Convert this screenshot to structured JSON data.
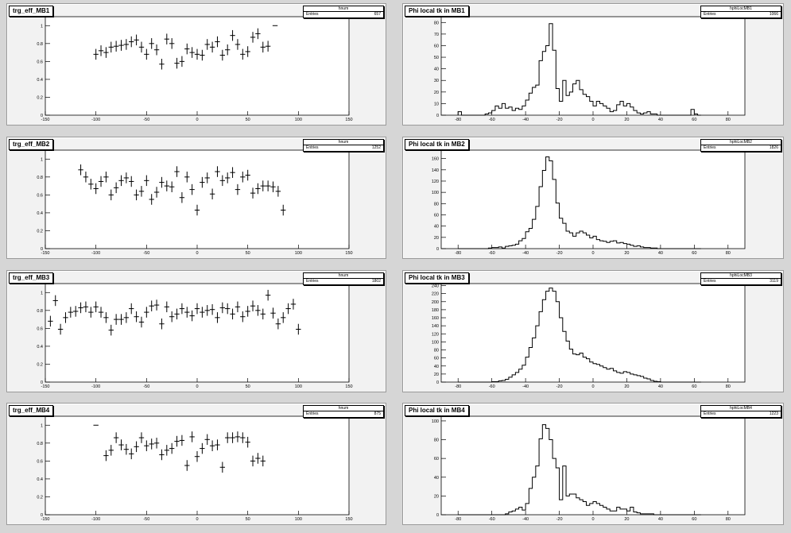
{
  "efficiency_pads": [
    {
      "title": "trg_eff_MB1",
      "stats_name": "hnum",
      "stats_entries_label": "Entries",
      "stats_entries": "657"
    },
    {
      "title": "trg_eff_MB2",
      "stats_name": "hnum",
      "stats_entries_label": "Entries",
      "stats_entries": "1252"
    },
    {
      "title": "trg_eff_MB3",
      "stats_name": "hnum",
      "stats_entries_label": "Entries",
      "stats_entries": "1802"
    },
    {
      "title": "trg_eff_MB4",
      "stats_name": "hnum",
      "stats_entries_label": "Entries",
      "stats_entries": "875"
    }
  ],
  "phi_pads": [
    {
      "title": "Phi local tk in MB1",
      "stats_name": "hphiLocMB1",
      "stats_entries_label": "Entries",
      "stats_entries": "1066"
    },
    {
      "title": "Phi local tk in MB2",
      "stats_name": "hphiLocMB2",
      "stats_entries_label": "Entries",
      "stats_entries": "1826"
    },
    {
      "title": "Phi local tk in MB3",
      "stats_name": "hphiLocMB3",
      "stats_entries_label": "Entries",
      "stats_entries": "3119"
    },
    {
      "title": "Phi local tk in MB4",
      "stats_name": "hphiLocMB4",
      "stats_entries_label": "Entries",
      "stats_entries": "1223"
    }
  ],
  "chart_data": [
    {
      "type": "scatter",
      "title": "trg_eff_MB1",
      "xlim": [
        -150,
        150
      ],
      "ylim": [
        0,
        1.1
      ],
      "xticks": [
        -150,
        -100,
        -50,
        0,
        50,
        100,
        150
      ],
      "yticks": [
        0,
        0.2,
        0.4,
        0.6,
        0.8,
        1
      ],
      "points": [
        [
          -100,
          0.68
        ],
        [
          -95,
          0.72
        ],
        [
          -90,
          0.7
        ],
        [
          -85,
          0.76
        ],
        [
          -80,
          0.77
        ],
        [
          -75,
          0.78
        ],
        [
          -70,
          0.79
        ],
        [
          -65,
          0.82
        ],
        [
          -60,
          0.84
        ],
        [
          -55,
          0.76
        ],
        [
          -50,
          0.68
        ],
        [
          -45,
          0.8
        ],
        [
          -40,
          0.73
        ],
        [
          -35,
          0.57
        ],
        [
          -30,
          0.85
        ],
        [
          -25,
          0.8
        ],
        [
          -20,
          0.58
        ],
        [
          -15,
          0.6
        ],
        [
          -10,
          0.74
        ],
        [
          -5,
          0.7
        ],
        [
          0,
          0.68
        ],
        [
          5,
          0.67
        ],
        [
          10,
          0.79
        ],
        [
          15,
          0.76
        ],
        [
          20,
          0.82
        ],
        [
          25,
          0.67
        ],
        [
          30,
          0.73
        ],
        [
          35,
          0.89
        ],
        [
          40,
          0.79
        ],
        [
          45,
          0.68
        ],
        [
          50,
          0.71
        ],
        [
          55,
          0.87
        ],
        [
          60,
          0.91
        ],
        [
          65,
          0.76
        ],
        [
          70,
          0.77
        ],
        [
          77,
          1.0
        ]
      ]
    },
    {
      "type": "scatter",
      "title": "trg_eff_MB2",
      "xlim": [
        -150,
        150
      ],
      "ylim": [
        0,
        1.1
      ],
      "xticks": [
        -150,
        -100,
        -50,
        0,
        50,
        100,
        150
      ],
      "yticks": [
        0,
        0.2,
        0.4,
        0.6,
        0.8,
        1
      ],
      "points": [
        [
          -115,
          0.88
        ],
        [
          -110,
          0.8
        ],
        [
          -105,
          0.72
        ],
        [
          -100,
          0.67
        ],
        [
          -95,
          0.75
        ],
        [
          -90,
          0.8
        ],
        [
          -85,
          0.6
        ],
        [
          -80,
          0.68
        ],
        [
          -75,
          0.76
        ],
        [
          -70,
          0.79
        ],
        [
          -65,
          0.75
        ],
        [
          -60,
          0.6
        ],
        [
          -55,
          0.64
        ],
        [
          -50,
          0.76
        ],
        [
          -45,
          0.55
        ],
        [
          -40,
          0.63
        ],
        [
          -35,
          0.74
        ],
        [
          -30,
          0.7
        ],
        [
          -25,
          0.69
        ],
        [
          -20,
          0.86
        ],
        [
          -15,
          0.57
        ],
        [
          -10,
          0.8
        ],
        [
          -5,
          0.66
        ],
        [
          0,
          0.43
        ],
        [
          5,
          0.74
        ],
        [
          10,
          0.79
        ],
        [
          15,
          0.61
        ],
        [
          20,
          0.86
        ],
        [
          25,
          0.76
        ],
        [
          30,
          0.79
        ],
        [
          35,
          0.85
        ],
        [
          40,
          0.66
        ],
        [
          45,
          0.8
        ],
        [
          50,
          0.82
        ],
        [
          55,
          0.62
        ],
        [
          60,
          0.67
        ],
        [
          65,
          0.7
        ],
        [
          70,
          0.7
        ],
        [
          75,
          0.69
        ],
        [
          80,
          0.64
        ],
        [
          85,
          0.43
        ]
      ]
    },
    {
      "type": "scatter",
      "title": "trg_eff_MB3",
      "xlim": [
        -150,
        150
      ],
      "ylim": [
        0,
        1.1
      ],
      "xticks": [
        -150,
        -100,
        -50,
        0,
        50,
        100,
        150
      ],
      "yticks": [
        0,
        0.2,
        0.4,
        0.6,
        0.8,
        1
      ],
      "points": [
        [
          -145,
          0.68
        ],
        [
          -140,
          0.91
        ],
        [
          -135,
          0.59
        ],
        [
          -130,
          0.72
        ],
        [
          -125,
          0.78
        ],
        [
          -120,
          0.79
        ],
        [
          -115,
          0.83
        ],
        [
          -110,
          0.84
        ],
        [
          -105,
          0.78
        ],
        [
          -100,
          0.84
        ],
        [
          -95,
          0.78
        ],
        [
          -90,
          0.72
        ],
        [
          -85,
          0.58
        ],
        [
          -80,
          0.7
        ],
        [
          -75,
          0.7
        ],
        [
          -70,
          0.72
        ],
        [
          -65,
          0.82
        ],
        [
          -60,
          0.73
        ],
        [
          -55,
          0.67
        ],
        [
          -50,
          0.78
        ],
        [
          -45,
          0.85
        ],
        [
          -40,
          0.86
        ],
        [
          -35,
          0.65
        ],
        [
          -30,
          0.84
        ],
        [
          -25,
          0.73
        ],
        [
          -20,
          0.76
        ],
        [
          -15,
          0.82
        ],
        [
          -10,
          0.78
        ],
        [
          -5,
          0.74
        ],
        [
          0,
          0.82
        ],
        [
          5,
          0.78
        ],
        [
          10,
          0.8
        ],
        [
          15,
          0.81
        ],
        [
          20,
          0.72
        ],
        [
          25,
          0.83
        ],
        [
          30,
          0.82
        ],
        [
          35,
          0.76
        ],
        [
          40,
          0.84
        ],
        [
          45,
          0.73
        ],
        [
          50,
          0.79
        ],
        [
          55,
          0.85
        ],
        [
          60,
          0.8
        ],
        [
          65,
          0.76
        ],
        [
          70,
          0.97
        ],
        [
          75,
          0.77
        ],
        [
          80,
          0.65
        ],
        [
          85,
          0.72
        ],
        [
          90,
          0.82
        ],
        [
          95,
          0.87
        ],
        [
          100,
          0.59
        ]
      ]
    },
    {
      "type": "scatter",
      "title": "trg_eff_MB4",
      "xlim": [
        -150,
        150
      ],
      "ylim": [
        0,
        1.1
      ],
      "xticks": [
        -150,
        -100,
        -50,
        0,
        50,
        100,
        150
      ],
      "yticks": [
        0,
        0.2,
        0.4,
        0.6,
        0.8,
        1
      ],
      "points": [
        [
          -100,
          1.0
        ],
        [
          -90,
          0.66
        ],
        [
          -85,
          0.72
        ],
        [
          -80,
          0.86
        ],
        [
          -75,
          0.78
        ],
        [
          -70,
          0.73
        ],
        [
          -65,
          0.68
        ],
        [
          -60,
          0.76
        ],
        [
          -55,
          0.86
        ],
        [
          -50,
          0.77
        ],
        [
          -45,
          0.79
        ],
        [
          -40,
          0.8
        ],
        [
          -35,
          0.67
        ],
        [
          -30,
          0.72
        ],
        [
          -25,
          0.74
        ],
        [
          -20,
          0.82
        ],
        [
          -15,
          0.83
        ],
        [
          -10,
          0.55
        ],
        [
          -5,
          0.87
        ],
        [
          0,
          0.65
        ],
        [
          5,
          0.74
        ],
        [
          10,
          0.84
        ],
        [
          15,
          0.77
        ],
        [
          20,
          0.78
        ],
        [
          25,
          0.53
        ],
        [
          30,
          0.86
        ],
        [
          35,
          0.86
        ],
        [
          40,
          0.87
        ],
        [
          45,
          0.86
        ],
        [
          50,
          0.81
        ],
        [
          55,
          0.6
        ],
        [
          60,
          0.63
        ],
        [
          65,
          0.6
        ]
      ]
    },
    {
      "type": "area",
      "title": "Phi local tk in MB1",
      "xlim": [
        -90,
        90
      ],
      "ylim": [
        0,
        85
      ],
      "xticks": [
        -80,
        -60,
        -40,
        -20,
        0,
        20,
        40,
        60,
        80
      ],
      "yticks": [
        0,
        10,
        20,
        30,
        40,
        50,
        60,
        70,
        80
      ],
      "bin_width": 2,
      "bins_x": [
        -80,
        -78,
        -76,
        -74,
        -72,
        -70,
        -68,
        -66,
        -64,
        -62,
        -60,
        -58,
        -56,
        -54,
        -52,
        -50,
        -48,
        -46,
        -44,
        -42,
        -40,
        -38,
        -36,
        -34,
        -32,
        -30,
        -28,
        -26,
        -24,
        -22,
        -20,
        -18,
        -16,
        -14,
        -12,
        -10,
        -8,
        -6,
        -4,
        -2,
        0,
        2,
        4,
        6,
        8,
        10,
        12,
        14,
        16,
        18,
        20,
        22,
        24,
        26,
        28,
        30,
        32,
        34,
        36,
        38,
        40,
        42,
        44,
        46,
        48,
        50,
        52,
        54,
        56,
        58,
        60,
        62
      ],
      "values": [
        3,
        0,
        0,
        0,
        0,
        0,
        0,
        0,
        1,
        2,
        4,
        8,
        6,
        10,
        6,
        7,
        4,
        6,
        5,
        8,
        13,
        19,
        24,
        26,
        47,
        55,
        60,
        79,
        56,
        23,
        12,
        30,
        17,
        20,
        27,
        30,
        22,
        18,
        16,
        12,
        8,
        12,
        10,
        8,
        6,
        3,
        4,
        9,
        12,
        8,
        10,
        7,
        4,
        2,
        1,
        2,
        3,
        1,
        1,
        0,
        0,
        0,
        0,
        0,
        0,
        0,
        0,
        0,
        0,
        5,
        1,
        0
      ]
    },
    {
      "type": "area",
      "title": "Phi local tk in MB2",
      "xlim": [
        -90,
        90
      ],
      "ylim": [
        0,
        175
      ],
      "xticks": [
        -80,
        -60,
        -40,
        -20,
        0,
        20,
        40,
        60,
        80
      ],
      "yticks": [
        0,
        20,
        40,
        60,
        80,
        100,
        120,
        140,
        160
      ],
      "bin_width": 2,
      "bins_x": [
        -80,
        -78,
        -76,
        -74,
        -72,
        -70,
        -68,
        -66,
        -64,
        -62,
        -60,
        -58,
        -56,
        -54,
        -52,
        -50,
        -48,
        -46,
        -44,
        -42,
        -40,
        -38,
        -36,
        -34,
        -32,
        -30,
        -28,
        -26,
        -24,
        -22,
        -20,
        -18,
        -16,
        -14,
        -12,
        -10,
        -8,
        -6,
        -4,
        -2,
        0,
        2,
        4,
        6,
        8,
        10,
        12,
        14,
        16,
        18,
        20,
        22,
        24,
        26,
        28,
        30,
        32,
        34,
        36,
        38,
        40,
        42,
        44,
        46,
        48,
        50,
        52,
        54,
        56,
        58,
        60,
        62
      ],
      "values": [
        0,
        0,
        0,
        0,
        0,
        0,
        0,
        0,
        0,
        1,
        2,
        2,
        3,
        1,
        4,
        5,
        6,
        8,
        14,
        18,
        30,
        36,
        52,
        75,
        110,
        139,
        163,
        156,
        123,
        81,
        54,
        45,
        31,
        28,
        22,
        28,
        31,
        28,
        24,
        19,
        22,
        16,
        14,
        13,
        11,
        13,
        14,
        10,
        11,
        9,
        8,
        6,
        4,
        5,
        3,
        2,
        2,
        1,
        1,
        0,
        0,
        0,
        0,
        0,
        0,
        0,
        0,
        0,
        0,
        0,
        0,
        0
      ]
    },
    {
      "type": "area",
      "title": "Phi local tk in MB3",
      "xlim": [
        -90,
        90
      ],
      "ylim": [
        0,
        245
      ],
      "xticks": [
        -80,
        -60,
        -40,
        -20,
        0,
        20,
        40,
        60,
        80
      ],
      "yticks": [
        0,
        20,
        40,
        60,
        80,
        100,
        120,
        140,
        160,
        180,
        200,
        220,
        240
      ],
      "bin_width": 2,
      "bins_x": [
        -80,
        -78,
        -76,
        -74,
        -72,
        -70,
        -68,
        -66,
        -64,
        -62,
        -60,
        -58,
        -56,
        -54,
        -52,
        -50,
        -48,
        -46,
        -44,
        -42,
        -40,
        -38,
        -36,
        -34,
        -32,
        -30,
        -28,
        -26,
        -24,
        -22,
        -20,
        -18,
        -16,
        -14,
        -12,
        -10,
        -8,
        -6,
        -4,
        -2,
        0,
        2,
        4,
        6,
        8,
        10,
        12,
        14,
        16,
        18,
        20,
        22,
        24,
        26,
        28,
        30,
        32,
        34,
        36,
        38,
        40,
        42,
        44,
        46,
        48,
        50,
        52,
        54,
        56,
        58,
        60,
        62
      ],
      "values": [
        0,
        0,
        0,
        0,
        0,
        0,
        0,
        0,
        0,
        0,
        1,
        1,
        3,
        4,
        7,
        12,
        18,
        24,
        32,
        42,
        62,
        86,
        110,
        140,
        175,
        205,
        226,
        234,
        226,
        200,
        160,
        126,
        102,
        82,
        70,
        68,
        72,
        62,
        58,
        50,
        46,
        44,
        40,
        36,
        32,
        34,
        28,
        24,
        22,
        26,
        24,
        20,
        18,
        16,
        14,
        10,
        8,
        4,
        2,
        1,
        0,
        0,
        0,
        0,
        0,
        0,
        0,
        0,
        0,
        0,
        0,
        0
      ]
    },
    {
      "type": "area",
      "title": "Phi local tk in MB4",
      "xlim": [
        -90,
        90
      ],
      "ylim": [
        0,
        105
      ],
      "xticks": [
        -80,
        -60,
        -40,
        -20,
        0,
        20,
        40,
        60,
        80
      ],
      "yticks": [
        0,
        20,
        40,
        60,
        80,
        100
      ],
      "bin_width": 2,
      "bins_x": [
        -80,
        -78,
        -76,
        -74,
        -72,
        -70,
        -68,
        -66,
        -64,
        -62,
        -60,
        -58,
        -56,
        -54,
        -52,
        -50,
        -48,
        -46,
        -44,
        -42,
        -40,
        -38,
        -36,
        -34,
        -32,
        -30,
        -28,
        -26,
        -24,
        -22,
        -20,
        -18,
        -16,
        -14,
        -12,
        -10,
        -8,
        -6,
        -4,
        -2,
        0,
        2,
        4,
        6,
        8,
        10,
        12,
        14,
        16,
        18,
        20,
        22,
        24,
        26,
        28,
        30,
        32,
        34,
        36,
        38,
        40,
        42,
        44,
        46,
        48,
        50,
        52,
        54,
        56,
        58,
        60,
        62
      ],
      "values": [
        0,
        0,
        0,
        0,
        0,
        0,
        0,
        0,
        0,
        0,
        0,
        0,
        0,
        0,
        1,
        3,
        4,
        6,
        8,
        5,
        12,
        28,
        40,
        52,
        81,
        96,
        92,
        80,
        60,
        50,
        16,
        52,
        20,
        22,
        22,
        18,
        16,
        14,
        10,
        12,
        14,
        12,
        10,
        8,
        6,
        4,
        4,
        8,
        6,
        6,
        4,
        8,
        3,
        2,
        1,
        1,
        1,
        1,
        0,
        0,
        0,
        0,
        0,
        0,
        0,
        0,
        0,
        0,
        0,
        0,
        0,
        0
      ]
    }
  ]
}
